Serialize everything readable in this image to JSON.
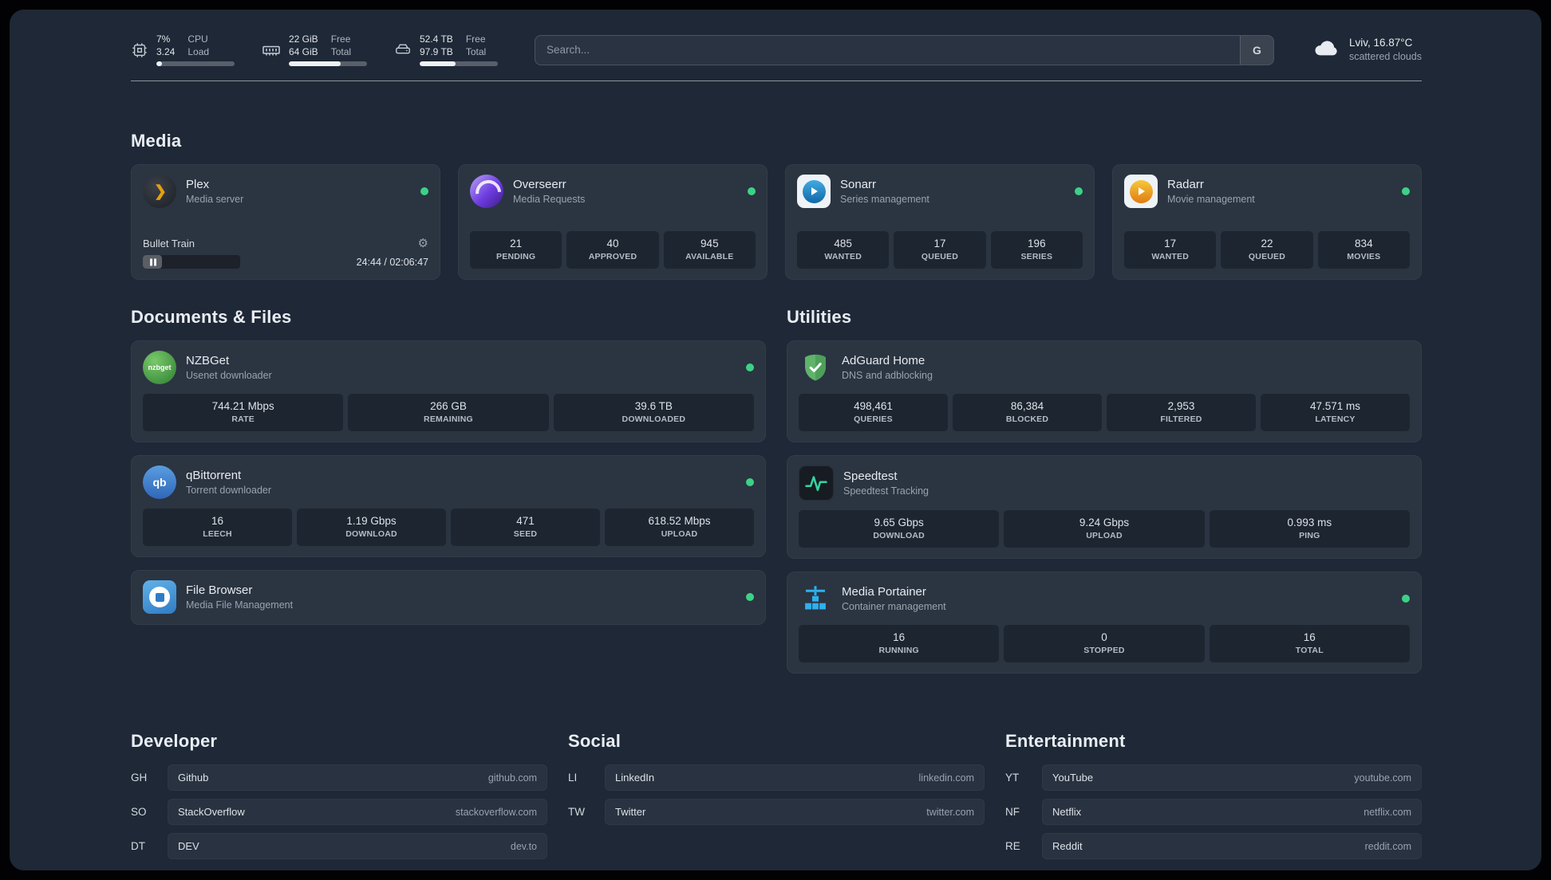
{
  "topbar": {
    "resources": [
      {
        "values": [
          "7%",
          "3.24"
        ],
        "labels": [
          "CPU",
          "Load"
        ],
        "progress": 7
      },
      {
        "values": [
          "22 GiB",
          "64 GiB"
        ],
        "labels": [
          "Free",
          "Total"
        ],
        "progress": 66
      },
      {
        "values": [
          "52.4 TB",
          "97.9 TB"
        ],
        "labels": [
          "Free",
          "Total"
        ],
        "progress": 46
      }
    ],
    "search": {
      "placeholder": "Search...",
      "provider": "G"
    },
    "weather": {
      "location": "Lviv, 16.87°C",
      "condition": "scattered clouds"
    }
  },
  "media": {
    "title": "Media",
    "plex": {
      "name": "Plex",
      "desc": "Media server",
      "now_playing": "Bullet Train",
      "time": "24:44 / 02:06:47",
      "progress": 20
    },
    "overseerr": {
      "name": "Overseerr",
      "desc": "Media Requests",
      "stats": [
        {
          "v": "21",
          "l": "PENDING"
        },
        {
          "v": "40",
          "l": "APPROVED"
        },
        {
          "v": "945",
          "l": "AVAILABLE"
        }
      ]
    },
    "sonarr": {
      "name": "Sonarr",
      "desc": "Series management",
      "stats": [
        {
          "v": "485",
          "l": "WANTED"
        },
        {
          "v": "17",
          "l": "QUEUED"
        },
        {
          "v": "196",
          "l": "SERIES"
        }
      ]
    },
    "radarr": {
      "name": "Radarr",
      "desc": "Movie management",
      "stats": [
        {
          "v": "17",
          "l": "WANTED"
        },
        {
          "v": "22",
          "l": "QUEUED"
        },
        {
          "v": "834",
          "l": "MOVIES"
        }
      ]
    }
  },
  "documents": {
    "title": "Documents & Files",
    "nzbget": {
      "name": "NZBGet",
      "desc": "Usenet downloader",
      "icon_text": "nzbget",
      "stats": [
        {
          "v": "744.21 Mbps",
          "l": "RATE"
        },
        {
          "v": "266 GB",
          "l": "REMAINING"
        },
        {
          "v": "39.6 TB",
          "l": "DOWNLOADED"
        }
      ]
    },
    "qbittorrent": {
      "name": "qBittorrent",
      "desc": "Torrent downloader",
      "icon_text": "qb",
      "stats": [
        {
          "v": "16",
          "l": "LEECH"
        },
        {
          "v": "1.19 Gbps",
          "l": "DOWNLOAD"
        },
        {
          "v": "471",
          "l": "SEED"
        },
        {
          "v": "618.52 Mbps",
          "l": "UPLOAD"
        }
      ]
    },
    "filebrowser": {
      "name": "File Browser",
      "desc": "Media File Management"
    }
  },
  "utilities": {
    "title": "Utilities",
    "adguard": {
      "name": "AdGuard Home",
      "desc": "DNS and adblocking",
      "stats": [
        {
          "v": "498,461",
          "l": "QUERIES"
        },
        {
          "v": "86,384",
          "l": "BLOCKED"
        },
        {
          "v": "2,953",
          "l": "FILTERED"
        },
        {
          "v": "47.571 ms",
          "l": "LATENCY"
        }
      ]
    },
    "speedtest": {
      "name": "Speedtest",
      "desc": "Speedtest Tracking",
      "stats": [
        {
          "v": "9.65 Gbps",
          "l": "DOWNLOAD"
        },
        {
          "v": "9.24 Gbps",
          "l": "UPLOAD"
        },
        {
          "v": "0.993 ms",
          "l": "PING"
        }
      ]
    },
    "portainer": {
      "name": "Media Portainer",
      "desc": "Container management",
      "stats": [
        {
          "v": "16",
          "l": "RUNNING"
        },
        {
          "v": "0",
          "l": "STOPPED"
        },
        {
          "v": "16",
          "l": "TOTAL"
        }
      ]
    }
  },
  "bookmarks": {
    "developer": {
      "title": "Developer",
      "items": [
        {
          "abbr": "GH",
          "name": "Github",
          "domain": "github.com"
        },
        {
          "abbr": "SO",
          "name": "StackOverflow",
          "domain": "stackoverflow.com"
        },
        {
          "abbr": "DT",
          "name": "DEV",
          "domain": "dev.to"
        }
      ]
    },
    "social": {
      "title": "Social",
      "items": [
        {
          "abbr": "LI",
          "name": "LinkedIn",
          "domain": "linkedin.com"
        },
        {
          "abbr": "TW",
          "name": "Twitter",
          "domain": "twitter.com"
        }
      ]
    },
    "entertainment": {
      "title": "Entertainment",
      "items": [
        {
          "abbr": "YT",
          "name": "YouTube",
          "domain": "youtube.com"
        },
        {
          "abbr": "NF",
          "name": "Netflix",
          "domain": "netflix.com"
        },
        {
          "abbr": "RE",
          "name": "Reddit",
          "domain": "reddit.com"
        }
      ]
    }
  }
}
